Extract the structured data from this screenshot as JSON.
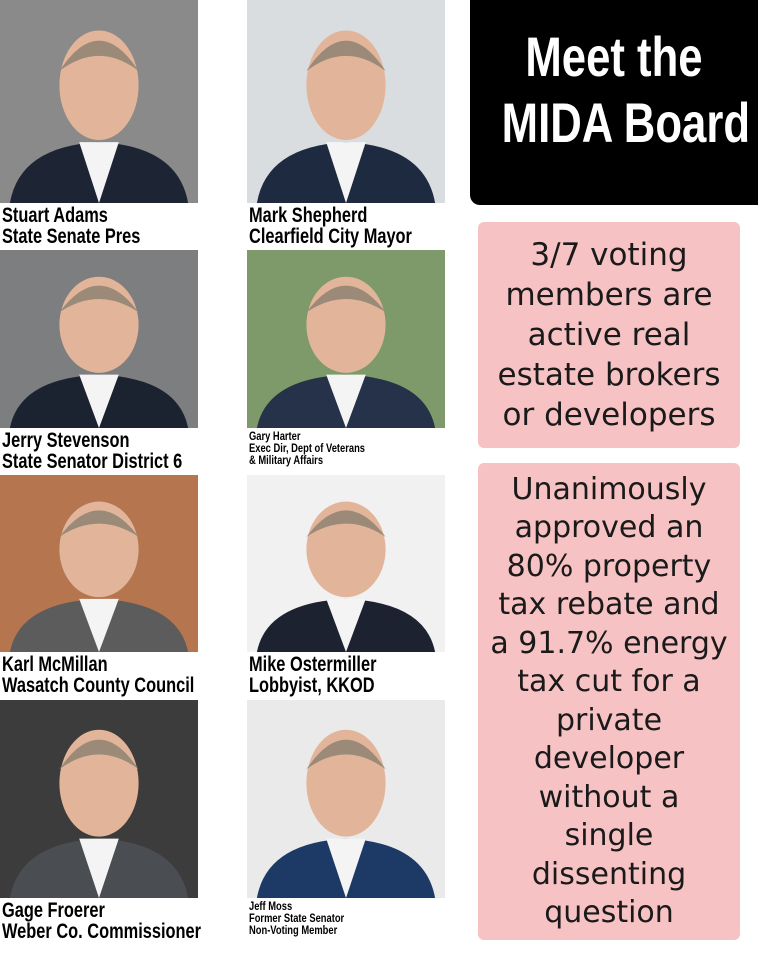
{
  "header": {
    "title": [
      "Meet the",
      "MIDA Board"
    ]
  },
  "members": [
    {
      "name": "Stuart Adams",
      "role": [
        "State Senate Pres"
      ]
    },
    {
      "name": "Jerry Stevenson",
      "role": [
        "State Senator District 6"
      ]
    },
    {
      "name": "Karl McMillan",
      "role": [
        "Wasatch County Council"
      ]
    },
    {
      "name": "Gage Froerer",
      "role": [
        "Weber Co. Commissioner"
      ]
    },
    {
      "name": "Mark Shepherd",
      "role": [
        "Clearfield City Mayor"
      ]
    },
    {
      "name": "Gary Harter",
      "role": [
        "Exec Dir, Dept of Veterans",
        "& Military Affairs"
      ]
    },
    {
      "name": "Mike Ostermiller",
      "role": [
        "Lobbyist, KKOD"
      ]
    },
    {
      "name": "Jeff Moss",
      "role": [
        "Former State Senator",
        "Non-Voting Member"
      ]
    }
  ],
  "callouts": [
    {
      "lines": [
        "3/7 voting",
        "members are",
        "active real",
        "estate brokers",
        "or developers"
      ]
    },
    {
      "lines": [
        "Unanimously",
        "approved an",
        "80% property",
        "tax rebate and",
        "a 91.7% energy",
        "tax cut for a",
        "private",
        "developer",
        "without a",
        "single",
        "dissenting",
        "question"
      ]
    }
  ]
}
